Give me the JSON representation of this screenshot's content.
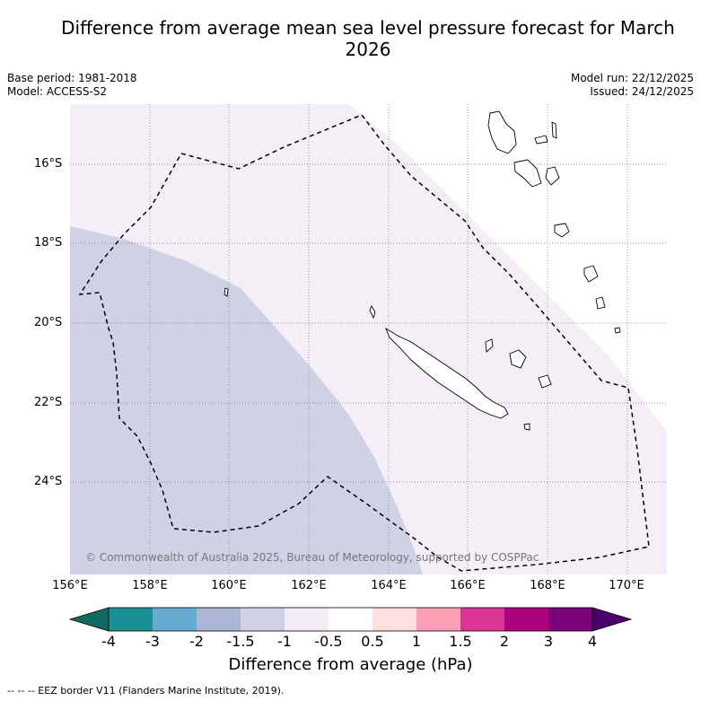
{
  "title": "Difference from average mean sea level pressure forecast for March 2026",
  "base_period": "Base period: 1981-2018",
  "model": "Model: ACCESS-S2",
  "model_run": "Model run: 22/12/2025",
  "issued": "Issued: 24/12/2025",
  "lat_labels": [
    "16°S",
    "18°S",
    "20°S",
    "22°S",
    "24°S"
  ],
  "lon_labels": [
    "156°E",
    "158°E",
    "160°E",
    "162°E",
    "164°E",
    "166°E",
    "168°E",
    "170°E"
  ],
  "copyright": "© Commonwealth of Australia 2025, Bureau of Meteorology, supported by COSPPac",
  "colorbar": {
    "ticks": [
      "-4",
      "-3",
      "-2",
      "-1.5",
      "-1",
      "-0.5",
      "0.5",
      "1",
      "1.5",
      "2",
      "3",
      "4"
    ],
    "colors": [
      "#1a9095",
      "#68abd2",
      "#aab6d4",
      "#d0d1e6",
      "#f1ecf5",
      "#ffffff",
      "#fde0dd",
      "#fa9fb5",
      "#dd3497",
      "#ae017e",
      "#7a0177"
    ],
    "under_color": "#0d6b5f",
    "over_color": "#49006a",
    "label": "Difference from average (hPa)"
  },
  "footer": "--  --  -- EEZ border V11 (Flanders Marine Institute, 2019).",
  "fill_colors": {
    "light": "#f4eef6",
    "medium": "#d0d1e6",
    "white": "#ffffff"
  }
}
